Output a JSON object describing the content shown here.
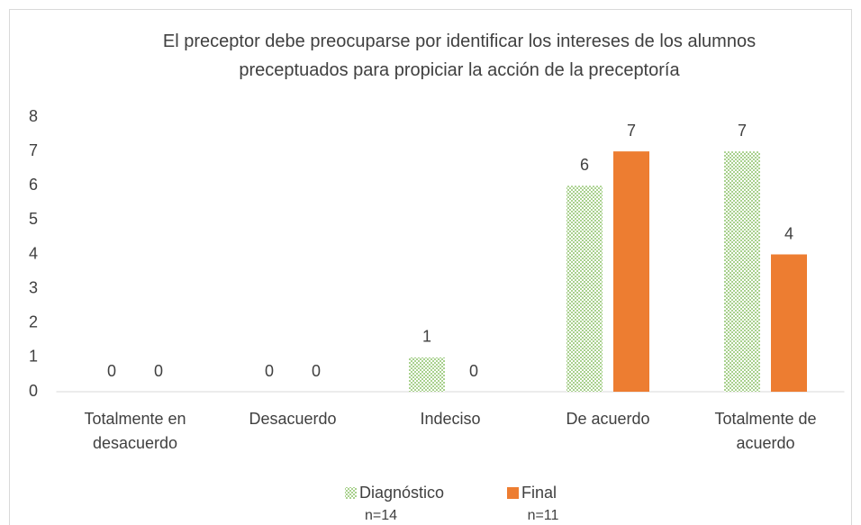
{
  "chart_data": {
    "type": "bar",
    "title": "El preceptor debe preocuparse por identificar los intereses de los alumnos preceptuados para propiciar la acción de la preceptoría",
    "categories": [
      "Totalmente en desacuerdo",
      "Desacuerdo",
      "Indeciso",
      "De acuerdo",
      "Totalmente de acuerdo"
    ],
    "series": [
      {
        "name": "Diagnóstico",
        "legend_note": "n=14",
        "color": "#a9d18e",
        "pattern": "checker",
        "values": [
          0,
          0,
          1,
          6,
          7
        ]
      },
      {
        "name": "Final",
        "legend_note": "n=11",
        "color": "#ed7d31",
        "values": [
          0,
          0,
          0,
          7,
          4
        ]
      }
    ],
    "ylim": [
      0,
      8
    ],
    "yticks": [
      0,
      1,
      2,
      3,
      4,
      5,
      6,
      7,
      8
    ],
    "grid": false,
    "legend": "bottom"
  }
}
